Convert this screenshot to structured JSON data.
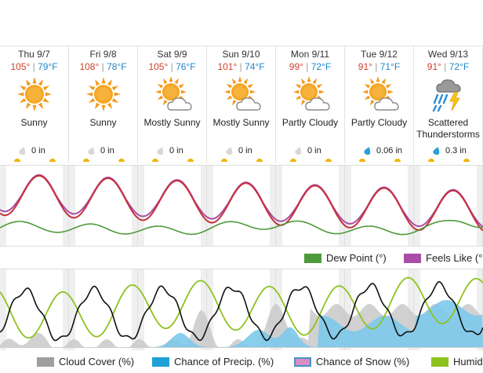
{
  "days": [
    {
      "date": "Thu 9/7",
      "high": "105°",
      "low": "79°F",
      "condition": "Sunny",
      "condition2": "",
      "icon": "sun-icon",
      "precip": "0 in",
      "drop": "gray-drop-icon"
    },
    {
      "date": "Fri 9/8",
      "high": "108°",
      "low": "78°F",
      "condition": "Sunny",
      "condition2": "",
      "icon": "sun-icon",
      "precip": "0 in",
      "drop": "gray-drop-icon"
    },
    {
      "date": "Sat 9/9",
      "high": "105°",
      "low": "76°F",
      "condition": "Mostly Sunny",
      "condition2": "",
      "icon": "sun-cloud-icon",
      "precip": "0 in",
      "drop": "gray-drop-icon"
    },
    {
      "date": "Sun 9/10",
      "high": "101°",
      "low": "74°F",
      "condition": "Mostly Sunny",
      "condition2": "",
      "icon": "sun-cloud-icon",
      "precip": "0 in",
      "drop": "gray-drop-icon"
    },
    {
      "date": "Mon 9/11",
      "high": "99°",
      "low": "72°F",
      "condition": "Partly Cloudy",
      "condition2": "",
      "icon": "sun-cloud-icon",
      "precip": "0 in",
      "drop": "gray-drop-icon"
    },
    {
      "date": "Tue 9/12",
      "high": "91°",
      "low": "71°F",
      "condition": "Partly Cloudy",
      "condition2": "",
      "icon": "sun-cloud-icon",
      "precip": "0.06 in",
      "drop": "blue-drop-icon"
    },
    {
      "date": "Wed 9/13",
      "high": "91°",
      "low": "72°F",
      "condition": "Scattered",
      "condition2": "Thunderstorms",
      "icon": "thunderstorm-icon",
      "precip": "0.3 in",
      "drop": "blue-drop-icon"
    }
  ],
  "temp_sep": " | ",
  "legend1": {
    "dew_point": "Dew Point (°)",
    "feels_like": "Feels Like (°"
  },
  "legend2": {
    "cloud_cover": "Cloud Cover (%)",
    "chance_precip": "Chance of Precip. (%)",
    "chance_snow": "Chance of Snow (%)",
    "humidity": "Humid"
  },
  "colors": {
    "high": "#d1402e",
    "low": "#1d87c8",
    "temperature": "#c8303a",
    "feels_like": "#a94ea6",
    "dew_point": "#4e9a3a",
    "cloud_cover": "#9e9e9e",
    "chance_precip": "#1fa0d6",
    "chance_snow": "#d98fc4",
    "humidity": "#8ec21f",
    "wind": "#111111"
  }
}
